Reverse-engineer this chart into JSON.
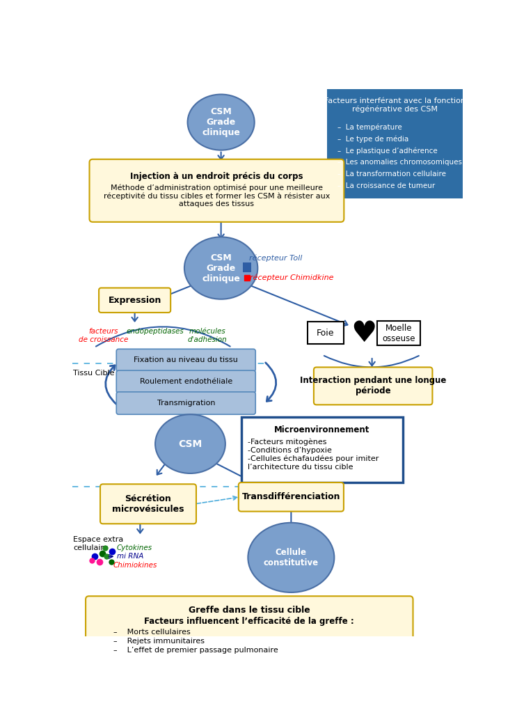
{
  "bg_color": "#ffffff",
  "blue_box_bg": "#2E6DA4",
  "yellow_box_bg": "#FFF8DC",
  "yellow_box_border": "#C8A000",
  "blue_ellipse_face": "#7B9FCC",
  "blue_ellipse_edge": "#4a6fa5",
  "light_blue_box_face": "#A8C0DC",
  "light_blue_box_edge": "#5588BB",
  "dark_blue_border": "#1F4E8C",
  "arrow_color": "#2E5DA4",
  "info_box": {
    "title": "Facteurs interférant avec la fonction\nrégénérative des CSM",
    "items": [
      "La température",
      "Le type de média",
      "Le plastique d’adhérence",
      "Les anomalies chromosomiques",
      "La transformation cellulaire",
      "La croissance de tumeur"
    ]
  },
  "injection_text_line1": "Injection à un endroit précis du corps",
  "injection_text_rest": "Méthode d’administration optimisé pour une meilleure\nréceptivité du tissu cibles et former les CSM à résister aux\nattaques des tissus",
  "micro_line1": "Microenvironnement",
  "micro_rest": "-Facteurs mitogènes\n-Conditions d’hypoxie\n-Cellules échafaudées pour imiter\nl’architecture du tissu cible",
  "greffe_line1": "Greffe dans le tissu cible",
  "greffe_line2": "Facteurs influencent l’efficacité de la greffe :",
  "greffe_items": [
    "Morts cellulaires",
    "Rejets immunitaires",
    "L’effet de premier passage pulmonaire"
  ]
}
